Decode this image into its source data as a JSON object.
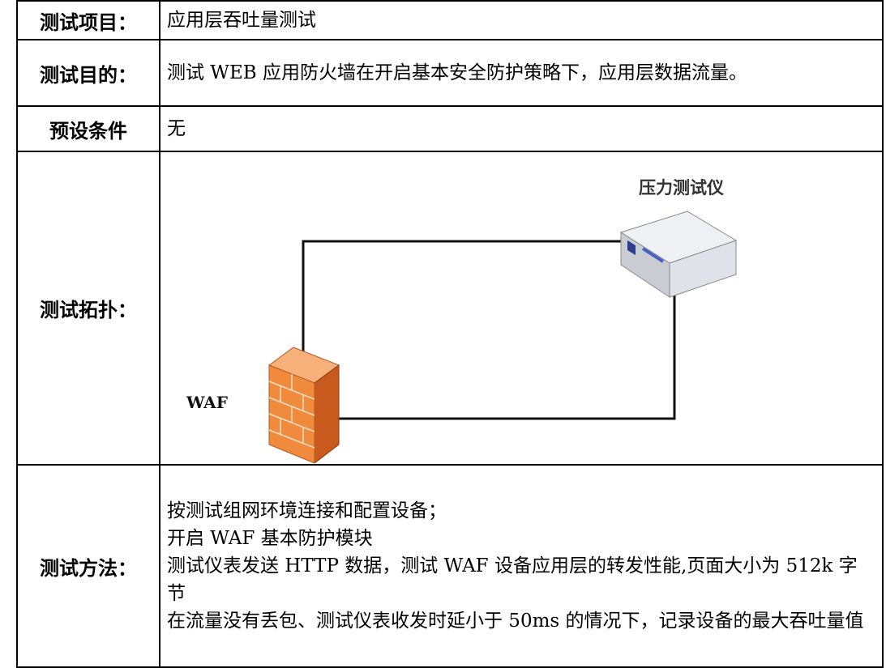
{
  "table": {
    "rows": [
      {
        "label": "测试项目：",
        "content": [
          "应用层吞吐量测试"
        ]
      },
      {
        "label": "测试目的：",
        "content": [
          "测试 WEB 应用防火墙在开启基本安全防护策略下，应用层数据流量。"
        ]
      },
      {
        "label": "预设条件",
        "content": [
          "无"
        ]
      },
      {
        "label": "测试拓扑：",
        "diagram": {
          "device_label": "压力测试仪",
          "firewall_label": "WAF"
        }
      },
      {
        "label": "测试方法：",
        "content": [
          "按测试组网环境连接和配置设备；",
          "开启 WAF 基本防护模块",
          "测试仪表发送 HTTP 数据，测试 WAF 设备应用层的转发性能,页面大小为 512k 字节",
          "在流量没有丢包、测试仪表收发时延小于 50ms 的情况下，记录设备的最大吞吐量值"
        ]
      }
    ]
  }
}
